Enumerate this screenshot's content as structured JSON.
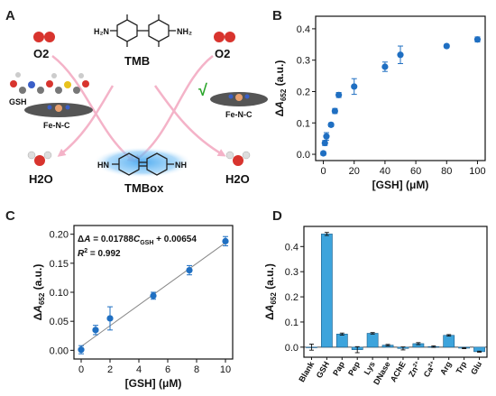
{
  "panels": {
    "a": "A",
    "b": "B",
    "c": "C",
    "d": "D"
  },
  "diagram": {
    "tmb": "TMB",
    "tmbox": "TMBox",
    "o2_left": "O2",
    "o2_right": "O2",
    "h2o_left": "H2O",
    "h2o_right": "H2O",
    "gsh": "GSH",
    "fenc_left": "Fe-N-C",
    "fenc_right": "Fe-N-C",
    "nh2_left": "H₂N",
    "nh2_right": "NH₂",
    "nh_left": "HN",
    "nh_right": "NH",
    "check": "√"
  },
  "chart_data": [
    {
      "type": "scatter",
      "panel": "B",
      "x": [
        0,
        1,
        2,
        5,
        7.5,
        10,
        20,
        40,
        50,
        80,
        100
      ],
      "y": [
        0.003,
        0.036,
        0.057,
        0.094,
        0.138,
        0.189,
        0.216,
        0.279,
        0.317,
        0.345,
        0.366
      ],
      "err": [
        0.006,
        0.008,
        0.012,
        0.006,
        0.008,
        0.008,
        0.025,
        0.015,
        0.028,
        0.005,
        0.008
      ],
      "xlabel": "[GSH] (μM)",
      "ylabel": "ΔA652 (a.u.)",
      "xlim": [
        -5,
        105
      ],
      "ylim": [
        -0.02,
        0.44
      ],
      "xticks": [
        "0",
        "20",
        "40",
        "60",
        "80",
        "100"
      ],
      "yticks": [
        "0.0",
        "0.1",
        "0.2",
        "0.3",
        "0.4"
      ]
    },
    {
      "type": "scatter",
      "panel": "C",
      "x": [
        0,
        1,
        2,
        5,
        7.5,
        10
      ],
      "y": [
        0.001,
        0.035,
        0.055,
        0.094,
        0.138,
        0.188
      ],
      "err": [
        0.007,
        0.008,
        0.02,
        0.006,
        0.008,
        0.008
      ],
      "fit": {
        "slope": 0.01788,
        "intercept": 0.00654
      },
      "equation": "ΔA = 0.01788CGSH + 0.00654",
      "r2": "R2 = 0.992",
      "xlabel": "[GSH] (μM)",
      "ylabel": "ΔA652 (a.u.)",
      "xlim": [
        -0.5,
        10.5
      ],
      "ylim": [
        -0.015,
        0.215
      ],
      "xticks": [
        "0",
        "2",
        "4",
        "6",
        "8",
        "10"
      ],
      "yticks": [
        "0.00",
        "0.05",
        "0.10",
        "0.15",
        "0.20"
      ]
    },
    {
      "type": "bar",
      "panel": "D",
      "categories": [
        "Blank",
        "GSH",
        "Pap",
        "Pep",
        "Lys",
        "DNase",
        "AChE",
        "Zn2+",
        "Ca2+",
        "Arg",
        "Trp",
        "Glu"
      ],
      "values": [
        0.0,
        0.45,
        0.052,
        -0.01,
        0.055,
        0.008,
        -0.005,
        0.014,
        0.002,
        0.047,
        -0.004,
        -0.018
      ],
      "err": [
        0.012,
        0.006,
        0.004,
        0.012,
        0.003,
        0.003,
        0.006,
        0.004,
        0.003,
        0.003,
        0.002,
        0.002
      ],
      "ylabel": "ΔA652 (a.u.)",
      "ylim": [
        -0.04,
        0.48
      ],
      "yticks": [
        "0.0",
        "0.1",
        "0.2",
        "0.3",
        "0.4"
      ],
      "color": "#3da4dc"
    }
  ],
  "colors": {
    "point": "#1f6fc2",
    "bar": "#3da4dc",
    "arrow": "#f4b3c8",
    "check": "#2aa52a",
    "glow": "#4aa9f0"
  }
}
